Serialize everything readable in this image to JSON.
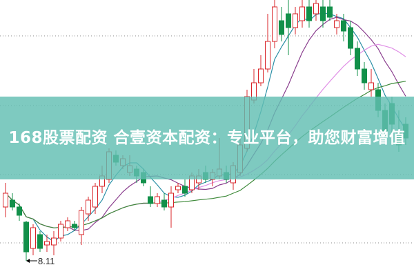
{
  "banner": {
    "title": "168股票配资 合壹资本配资：专业平台，助您财富增值"
  },
  "chart_data": {
    "type": "candlestick",
    "title": "",
    "xlabel": "",
    "ylabel": "",
    "ylim": [
      7.89,
      11.89
    ],
    "grid": "horizontal dotted",
    "annotations": [
      {
        "label": "8.11",
        "candle_index": 3,
        "meaning": "low"
      }
    ],
    "colors": {
      "up": "#d9252a",
      "down": "#12904a",
      "ma5": "#2a8fa6",
      "ma10": "#8a3e8e",
      "ma20": "#e08fe6",
      "ma30": "#3e8a3a"
    },
    "candles": [
      [
        8.89,
        9.24,
        8.74,
        9.09
      ],
      [
        8.99,
        9.09,
        8.84,
        8.89
      ],
      [
        8.89,
        8.94,
        8.69,
        8.77
      ],
      [
        8.67,
        8.69,
        8.11,
        8.24
      ],
      [
        8.29,
        8.64,
        8.19,
        8.59
      ],
      [
        8.49,
        8.54,
        8.24,
        8.29
      ],
      [
        8.34,
        8.49,
        8.24,
        8.39
      ],
      [
        8.34,
        8.54,
        8.19,
        8.44
      ],
      [
        8.44,
        8.69,
        8.39,
        8.64
      ],
      [
        8.59,
        8.74,
        8.54,
        8.69
      ],
      [
        8.64,
        8.69,
        8.54,
        8.59
      ],
      [
        8.49,
        8.89,
        8.34,
        8.84
      ],
      [
        8.79,
        9.04,
        8.69,
        8.99
      ],
      [
        8.89,
        9.24,
        8.79,
        9.19
      ],
      [
        9.19,
        9.49,
        9.09,
        9.34
      ],
      [
        9.29,
        9.74,
        9.24,
        9.69
      ],
      [
        9.64,
        9.71,
        9.49,
        9.54
      ],
      [
        9.49,
        9.64,
        9.44,
        9.59
      ],
      [
        9.39,
        9.64,
        9.34,
        9.49
      ],
      [
        9.44,
        9.49,
        9.24,
        9.34
      ],
      [
        9.39,
        9.44,
        9.19,
        9.24
      ],
      [
        9.04,
        9.19,
        8.89,
        8.94
      ],
      [
        8.94,
        9.09,
        8.89,
        9.04
      ],
      [
        8.99,
        9.09,
        8.84,
        8.89
      ],
      [
        8.89,
        9.19,
        8.59,
        9.09
      ],
      [
        9.14,
        9.24,
        9.09,
        9.19
      ],
      [
        9.19,
        9.29,
        9.04,
        9.09
      ],
      [
        9.14,
        9.39,
        9.09,
        9.34
      ],
      [
        9.24,
        9.44,
        9.14,
        9.34
      ],
      [
        9.39,
        9.49,
        9.24,
        9.29
      ],
      [
        9.29,
        9.44,
        9.19,
        9.39
      ],
      [
        9.34,
        9.89,
        9.29,
        9.44
      ],
      [
        9.39,
        9.49,
        9.24,
        9.29
      ],
      [
        9.24,
        9.54,
        9.14,
        9.49
      ],
      [
        9.39,
        9.89,
        9.34,
        9.79
      ],
      [
        9.74,
        10.59,
        9.69,
        10.49
      ],
      [
        10.44,
        10.89,
        10.39,
        10.69
      ],
      [
        10.69,
        11.09,
        10.64,
        10.89
      ],
      [
        10.89,
        11.69,
        10.84,
        11.29
      ],
      [
        11.29,
        11.89,
        11.19,
        11.79
      ],
      [
        11.59,
        11.79,
        11.29,
        11.39
      ],
      [
        11.69,
        11.89,
        11.09,
        11.49
      ],
      [
        11.49,
        11.79,
        11.39,
        11.69
      ],
      [
        11.59,
        11.89,
        11.49,
        11.79
      ],
      [
        11.79,
        11.89,
        11.49,
        11.59
      ],
      [
        11.69,
        11.89,
        11.59,
        11.84
      ],
      [
        11.79,
        11.89,
        11.49,
        11.59
      ],
      [
        11.79,
        11.89,
        11.59,
        11.64
      ],
      [
        11.49,
        11.69,
        11.39,
        11.59
      ],
      [
        11.59,
        11.69,
        11.29,
        11.44
      ],
      [
        11.49,
        11.59,
        11.09,
        11.19
      ],
      [
        11.19,
        11.29,
        10.79,
        10.89
      ],
      [
        10.89,
        10.99,
        10.59,
        10.69
      ],
      [
        10.59,
        10.89,
        10.49,
        10.69
      ],
      [
        10.59,
        10.69,
        10.19,
        10.29
      ],
      [
        10.29,
        10.39,
        9.89,
        9.99
      ],
      [
        10.39,
        10.49,
        9.89,
        10.09
      ],
      [
        9.99,
        10.29,
        9.69,
        9.79
      ],
      [
        10.09,
        10.19,
        9.79,
        9.89
      ]
    ],
    "candle_fields": [
      "open",
      "high",
      "low",
      "close"
    ]
  }
}
